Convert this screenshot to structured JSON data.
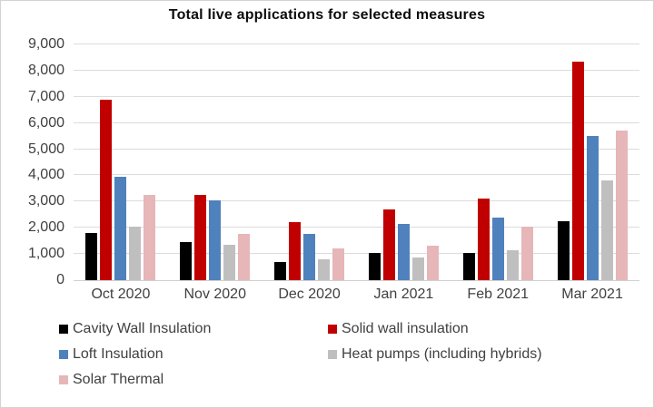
{
  "chart_data": {
    "type": "bar",
    "title": "Total live applications for selected measures",
    "categories": [
      "Oct 2020",
      "Nov 2020",
      "Dec 2020",
      "Jan 2021",
      "Feb 2021",
      "Mar 2021"
    ],
    "series": [
      {
        "name": "Cavity Wall Insulation",
        "color": "#000000",
        "values": [
          1800,
          1450,
          700,
          1050,
          1050,
          2250
        ]
      },
      {
        "name": "Solid wall insulation",
        "color": "#C00000",
        "values": [
          6900,
          3250,
          2200,
          2700,
          3100,
          8350
        ]
      },
      {
        "name": "Loft Insulation",
        "color": "#4F81BD",
        "values": [
          3950,
          3050,
          1750,
          2150,
          2400,
          5500
        ]
      },
      {
        "name": "Heat pumps (including hybrids)",
        "color": "#BFBFBF",
        "values": [
          2050,
          1350,
          800,
          850,
          1150,
          3800
        ]
      },
      {
        "name": "Solar Thermal",
        "color": "#E6B6B8",
        "values": [
          3250,
          1750,
          1200,
          1300,
          2050,
          5700
        ]
      }
    ],
    "xlabel": "",
    "ylabel": "",
    "ylim": [
      0,
      9000
    ],
    "ytick_step": 1000,
    "ytick_labels": [
      "0",
      "1,000",
      "2,000",
      "3,000",
      "4,000",
      "5,000",
      "6,000",
      "7,000",
      "8,000",
      "9,000"
    ],
    "grid": true,
    "legend_position": "bottom"
  }
}
